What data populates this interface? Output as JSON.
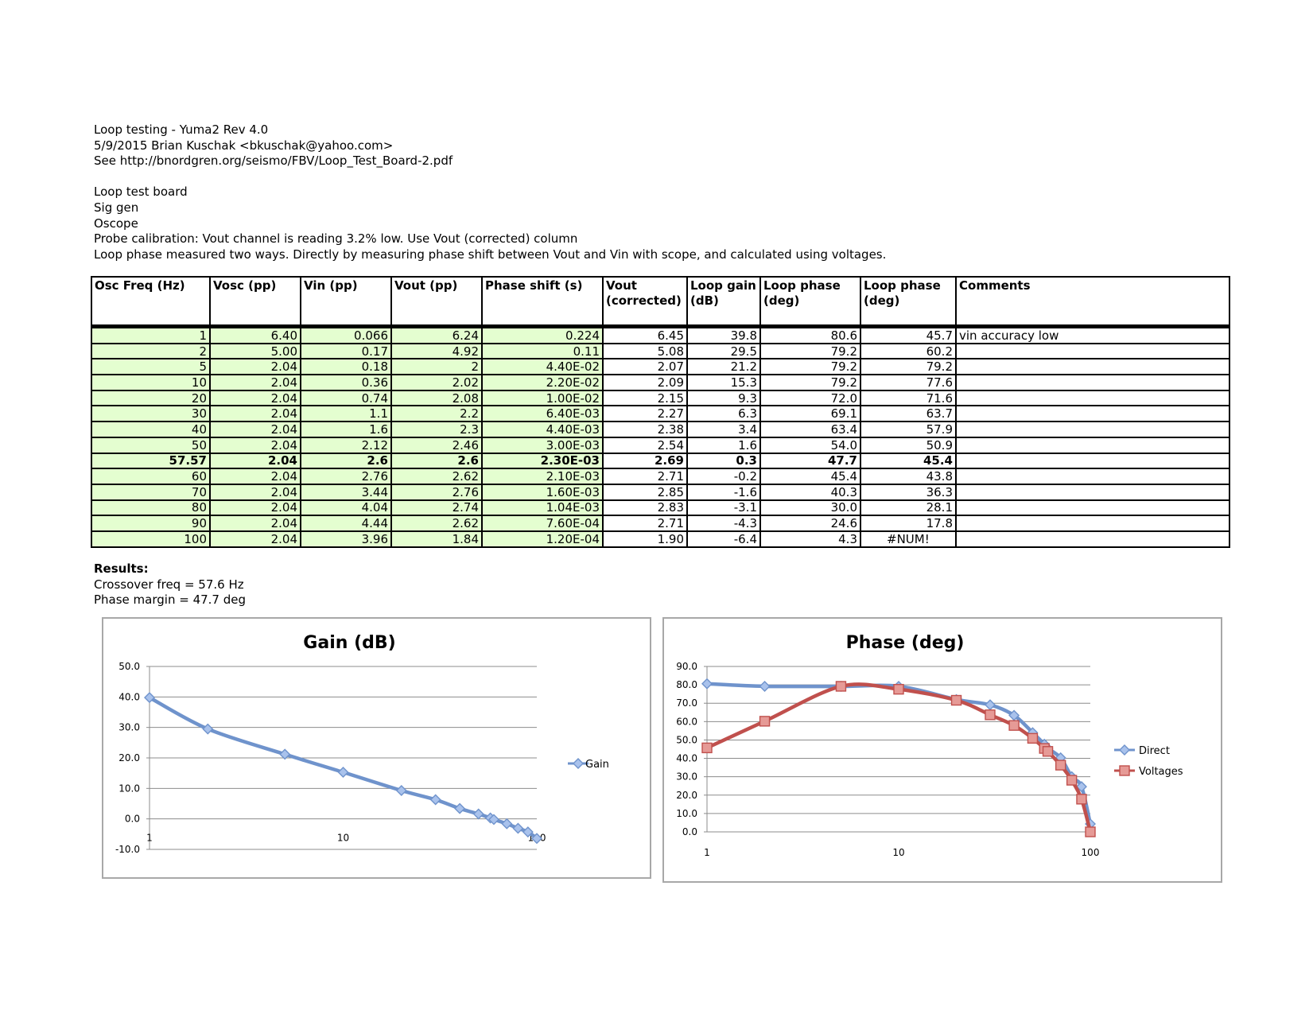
{
  "header": {
    "lines": [
      "Loop testing - Yuma2 Rev 4.0",
      "5/9/2015 Brian Kuschak <bkuschak@yahoo.com>",
      "See http://bnordgren.org/seismo/FBV/Loop_Test_Board-2.pdf",
      "",
      "Loop test board",
      "Sig gen",
      "Oscope",
      "Probe calibration: Vout channel is reading 3.2% low. Use Vout (corrected) column",
      "Loop phase measured two ways. Directly by measuring phase shift between Vout and Vin with scope, and calculated using voltages."
    ]
  },
  "table": {
    "columns": [
      [
        "Osc Freq (Hz)"
      ],
      [
        "Vosc (pp)"
      ],
      [
        "Vin (pp)"
      ],
      [
        "Vout (pp)"
      ],
      [
        "Phase shift (s)"
      ],
      [
        "Vout",
        "(corrected)"
      ],
      [
        "Loop gain",
        "(dB)"
      ],
      [
        "Loop phase",
        "(deg)"
      ],
      [
        "Loop phase",
        "(deg)"
      ],
      [
        "Comments"
      ]
    ],
    "rows": [
      [
        "1",
        "6.40",
        "0.066",
        "6.24",
        "0.224",
        "6.45",
        "39.8",
        "80.6",
        "45.7",
        "vin accuracy low"
      ],
      [
        "2",
        "5.00",
        "0.17",
        "4.92",
        "0.11",
        "5.08",
        "29.5",
        "79.2",
        "60.2",
        ""
      ],
      [
        "5",
        "2.04",
        "0.18",
        "2",
        "4.40E-02",
        "2.07",
        "21.2",
        "79.2",
        "79.2",
        ""
      ],
      [
        "10",
        "2.04",
        "0.36",
        "2.02",
        "2.20E-02",
        "2.09",
        "15.3",
        "79.2",
        "77.6",
        ""
      ],
      [
        "20",
        "2.04",
        "0.74",
        "2.08",
        "1.00E-02",
        "2.15",
        "9.3",
        "72.0",
        "71.6",
        ""
      ],
      [
        "30",
        "2.04",
        "1.1",
        "2.2",
        "6.40E-03",
        "2.27",
        "6.3",
        "69.1",
        "63.7",
        ""
      ],
      [
        "40",
        "2.04",
        "1.6",
        "2.3",
        "4.40E-03",
        "2.38",
        "3.4",
        "63.4",
        "57.9",
        ""
      ],
      [
        "50",
        "2.04",
        "2.12",
        "2.46",
        "3.00E-03",
        "2.54",
        "1.6",
        "54.0",
        "50.9",
        ""
      ],
      [
        "57.57",
        "2.04",
        "2.6",
        "2.6",
        "2.30E-03",
        "2.69",
        "0.3",
        "47.7",
        "45.4",
        ""
      ],
      [
        "60",
        "2.04",
        "2.76",
        "2.62",
        "2.10E-03",
        "2.71",
        "-0.2",
        "45.4",
        "43.8",
        ""
      ],
      [
        "70",
        "2.04",
        "3.44",
        "2.76",
        "1.60E-03",
        "2.85",
        "-1.6",
        "40.3",
        "36.3",
        ""
      ],
      [
        "80",
        "2.04",
        "4.04",
        "2.74",
        "1.04E-03",
        "2.83",
        "-3.1",
        "30.0",
        "28.1",
        ""
      ],
      [
        "90",
        "2.04",
        "4.44",
        "2.62",
        "7.60E-04",
        "2.71",
        "-4.3",
        "24.6",
        "17.8",
        ""
      ],
      [
        "100",
        "2.04",
        "3.96",
        "1.84",
        "1.20E-04",
        "1.90",
        "-6.4",
        "4.3",
        "#NUM!",
        ""
      ]
    ],
    "bold_row": 8
  },
  "results": {
    "heading": "Results:",
    "crossover": "Crossover freq = 57.6 Hz",
    "phase_margin": "Phase margin = 47.7 deg"
  },
  "colors": {
    "input_cell_bg": "#e4fed0",
    "series_blue": "#6f93cc",
    "series_red": "#c0504d"
  },
  "chart_data": [
    {
      "type": "line",
      "title": "Gain (dB)",
      "x_scale": "log",
      "xlim": [
        1,
        100
      ],
      "ylim": [
        -10,
        50
      ],
      "x_ticks": [
        "1",
        "10",
        "100"
      ],
      "y_ticks": [
        "-10.0",
        "0.0",
        "10.0",
        "20.0",
        "30.0",
        "40.0",
        "50.0"
      ],
      "grid": true,
      "legend": "right",
      "x": [
        1,
        2,
        5,
        10,
        20,
        30,
        40,
        50,
        57.57,
        60,
        70,
        80,
        90,
        100
      ],
      "series": [
        {
          "name": "Gain",
          "marker": "diamond",
          "color": "#6f93cc",
          "values": [
            39.8,
            29.5,
            21.2,
            15.3,
            9.3,
            6.3,
            3.4,
            1.6,
            0.3,
            -0.2,
            -1.6,
            -3.1,
            -4.3,
            -6.4
          ]
        }
      ]
    },
    {
      "type": "line",
      "title": "Phase (deg)",
      "x_scale": "log",
      "xlim": [
        1,
        100
      ],
      "ylim": [
        0,
        90
      ],
      "x_ticks": [
        "1",
        "10",
        "100"
      ],
      "y_ticks": [
        "0.0",
        "10.0",
        "20.0",
        "30.0",
        "40.0",
        "50.0",
        "60.0",
        "70.0",
        "80.0",
        "90.0"
      ],
      "grid": true,
      "legend": "right",
      "x": [
        1,
        2,
        5,
        10,
        20,
        30,
        40,
        50,
        57.57,
        60,
        70,
        80,
        90,
        100
      ],
      "series": [
        {
          "name": "Direct",
          "marker": "diamond",
          "color": "#6f93cc",
          "values": [
            80.6,
            79.2,
            79.2,
            79.2,
            72.0,
            69.1,
            63.4,
            54.0,
            47.7,
            45.4,
            40.3,
            30.0,
            24.6,
            4.3
          ]
        },
        {
          "name": "Voltages",
          "marker": "square",
          "color": "#c0504d",
          "values": [
            45.7,
            60.2,
            79.2,
            77.6,
            71.6,
            63.7,
            57.9,
            50.9,
            45.4,
            43.8,
            36.3,
            28.1,
            17.8,
            0
          ]
        }
      ]
    }
  ]
}
